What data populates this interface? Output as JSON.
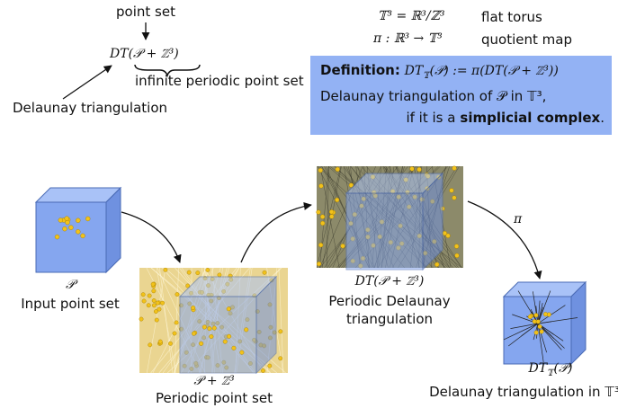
{
  "top_left": {
    "point_set_label": "point set",
    "formula": "DT(𝒫 + ℤ³)",
    "brace_label": "infinite periodic point set",
    "dt_label": "Delaunay triangulation"
  },
  "top_right": {
    "rows": [
      [
        "𝕋³ = ℝ³/ℤ³",
        "flat torus"
      ],
      [
        "π : ℝ³ → 𝕋³",
        "quotient map"
      ]
    ]
  },
  "definition": {
    "heading": "Definition:",
    "formula": {
      "main": "DT",
      "sub": "𝕋",
      "rest": "(𝒫) := π(DT(𝒫 + ℤ³))"
    },
    "line2": "Delaunay triangulation of 𝒫 in 𝕋³,",
    "line3_start": "if it is a",
    "line3_bold": "simplicial complex",
    "line3_end": "."
  },
  "panels": [
    {
      "symbol": "𝒫",
      "caption": "Input point set"
    },
    {
      "symbol": "𝒫 + ℤ³",
      "caption": "Periodic point set"
    },
    {
      "symbol": "DT(𝒫 + ℤ³)",
      "caption": [
        "Periodic Delaunay",
        "triangulation"
      ]
    },
    {
      "symbol": {
        "main": "DT",
        "sub": "𝕋",
        "rest": "(𝒫)"
      },
      "caption": "Delaunay triangulation in 𝕋³"
    }
  ],
  "arrow_label": "π"
}
